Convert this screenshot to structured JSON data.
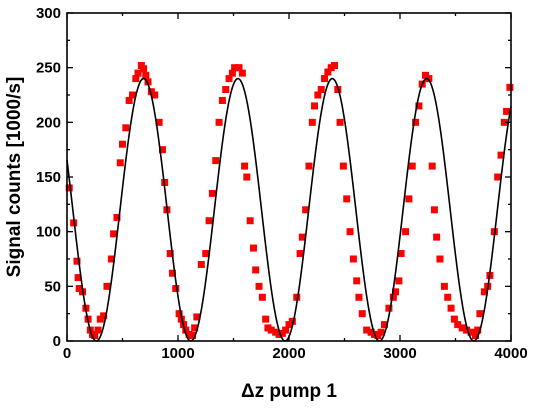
{
  "chart_data": {
    "type": "scatter",
    "xlabel": "Δz pump 1",
    "ylabel": "Signal counts [1000/s]",
    "xlim": [
      0,
      4000
    ],
    "ylim": [
      0,
      300
    ],
    "xticks": [
      0,
      1000,
      2000,
      3000,
      4000
    ],
    "yticks": [
      0,
      50,
      100,
      150,
      200,
      250,
      300
    ],
    "grid": false,
    "legend": "none",
    "series": [
      {
        "kind": "scatter",
        "marker": "square",
        "color": "#ff0000",
        "points": [
          [
            20,
            140
          ],
          [
            60,
            108
          ],
          [
            90,
            73
          ],
          [
            100,
            58
          ],
          [
            110,
            48
          ],
          [
            140,
            45
          ],
          [
            170,
            30
          ],
          [
            190,
            20
          ],
          [
            210,
            10
          ],
          [
            230,
            6
          ],
          [
            250,
            5
          ],
          [
            280,
            10
          ],
          [
            300,
            20
          ],
          [
            330,
            23
          ],
          [
            360,
            50
          ],
          [
            400,
            75
          ],
          [
            420,
            98
          ],
          [
            450,
            113
          ],
          [
            480,
            163
          ],
          [
            500,
            180
          ],
          [
            530,
            195
          ],
          [
            560,
            220
          ],
          [
            590,
            225
          ],
          [
            620,
            240
          ],
          [
            640,
            245
          ],
          [
            670,
            252
          ],
          [
            690,
            249
          ],
          [
            710,
            243
          ],
          [
            730,
            237
          ],
          [
            760,
            228
          ],
          [
            790,
            225
          ],
          [
            830,
            200
          ],
          [
            860,
            175
          ],
          [
            880,
            145
          ],
          [
            900,
            120
          ],
          [
            930,
            80
          ],
          [
            950,
            62
          ],
          [
            980,
            48
          ],
          [
            1010,
            25
          ],
          [
            1030,
            20
          ],
          [
            1050,
            15
          ],
          [
            1070,
            10
          ],
          [
            1100,
            6
          ],
          [
            1130,
            5
          ],
          [
            1150,
            12
          ],
          [
            1170,
            22
          ],
          [
            1210,
            70
          ],
          [
            1250,
            80
          ],
          [
            1280,
            110
          ],
          [
            1310,
            135
          ],
          [
            1340,
            165
          ],
          [
            1370,
            200
          ],
          [
            1400,
            220
          ],
          [
            1430,
            230
          ],
          [
            1460,
            240
          ],
          [
            1490,
            245
          ],
          [
            1510,
            250
          ],
          [
            1550,
            250
          ],
          [
            1580,
            245
          ],
          [
            1600,
            160
          ],
          [
            1620,
            150
          ],
          [
            1650,
            110
          ],
          [
            1680,
            85
          ],
          [
            1700,
            65
          ],
          [
            1730,
            50
          ],
          [
            1760,
            40
          ],
          [
            1790,
            20
          ],
          [
            1810,
            12
          ],
          [
            1840,
            10
          ],
          [
            1880,
            8
          ],
          [
            1910,
            6
          ],
          [
            1940,
            7
          ],
          [
            1970,
            10
          ],
          [
            2000,
            15
          ],
          [
            2030,
            18
          ],
          [
            2070,
            40
          ],
          [
            2100,
            80
          ],
          [
            2120,
            95
          ],
          [
            2150,
            120
          ],
          [
            2180,
            160
          ],
          [
            2210,
            200
          ],
          [
            2230,
            215
          ],
          [
            2260,
            225
          ],
          [
            2290,
            230
          ],
          [
            2320,
            240
          ],
          [
            2350,
            246
          ],
          [
            2380,
            250
          ],
          [
            2410,
            252
          ],
          [
            2440,
            230
          ],
          [
            2460,
            200
          ],
          [
            2490,
            160
          ],
          [
            2520,
            130
          ],
          [
            2550,
            100
          ],
          [
            2580,
            75
          ],
          [
            2610,
            55
          ],
          [
            2630,
            40
          ],
          [
            2660,
            25
          ],
          [
            2700,
            10
          ],
          [
            2740,
            8
          ],
          [
            2770,
            6
          ],
          [
            2800,
            5
          ],
          [
            2830,
            8
          ],
          [
            2860,
            15
          ],
          [
            2900,
            30
          ],
          [
            2940,
            40
          ],
          [
            2960,
            45
          ],
          [
            2990,
            55
          ],
          [
            3010,
            80
          ],
          [
            3050,
            100
          ],
          [
            3080,
            130
          ],
          [
            3110,
            160
          ],
          [
            3140,
            200
          ],
          [
            3170,
            215
          ],
          [
            3200,
            235
          ],
          [
            3230,
            243
          ],
          [
            3260,
            240
          ],
          [
            3290,
            160
          ],
          [
            3310,
            120
          ],
          [
            3330,
            95
          ],
          [
            3360,
            75
          ],
          [
            3400,
            50
          ],
          [
            3430,
            40
          ],
          [
            3460,
            30
          ],
          [
            3490,
            20
          ],
          [
            3520,
            15
          ],
          [
            3560,
            12
          ],
          [
            3600,
            10
          ],
          [
            3640,
            8
          ],
          [
            3680,
            5
          ],
          [
            3700,
            10
          ],
          [
            3720,
            25
          ],
          [
            3760,
            45
          ],
          [
            3790,
            50
          ],
          [
            3810,
            60
          ],
          [
            3850,
            100
          ],
          [
            3880,
            150
          ],
          [
            3910,
            170
          ],
          [
            3940,
            200
          ],
          [
            3960,
            210
          ],
          [
            3990,
            232
          ]
        ]
      },
      {
        "kind": "line",
        "color": "#000000",
        "fit": {
          "form": "A + B*cos(2*pi*(x - x0)/period)",
          "A": 120,
          "B": 120,
          "x0": 690,
          "period": 850
        }
      }
    ]
  }
}
